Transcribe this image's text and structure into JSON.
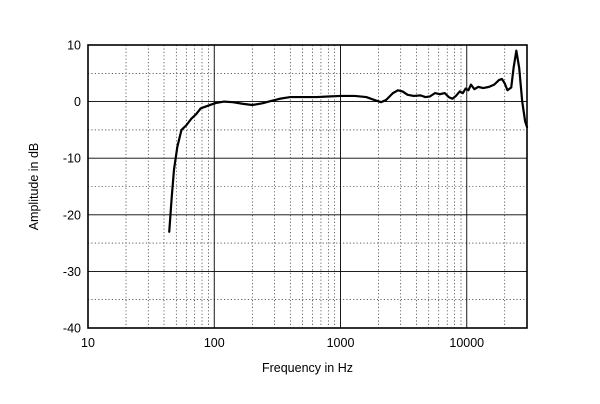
{
  "chart_data": {
    "type": "line",
    "title": "",
    "xlabel": "Frequency in Hz",
    "ylabel": "Amplitude in dB",
    "xscale": "log",
    "xlim": [
      10,
      30000
    ],
    "ylim": [
      -40,
      10
    ],
    "grid": true,
    "legend": "none",
    "x_tick_labels": [
      {
        "value": 10,
        "label": "10"
      },
      {
        "value": 100,
        "label": "100"
      },
      {
        "value": 1000,
        "label": "1000"
      },
      {
        "value": 10000,
        "label": "10000"
      }
    ],
    "y_tick_labels": [
      {
        "value": 10,
        "label": "10"
      },
      {
        "value": 0,
        "label": "0"
      },
      {
        "value": -10,
        "label": "-10"
      },
      {
        "value": -20,
        "label": "-20"
      },
      {
        "value": -30,
        "label": "-30"
      },
      {
        "value": -40,
        "label": "-40"
      }
    ],
    "series": [
      {
        "color": "#000000",
        "points": [
          [
            44,
            -23
          ],
          [
            46,
            -17
          ],
          [
            48,
            -12
          ],
          [
            51,
            -8
          ],
          [
            55,
            -5
          ],
          [
            60,
            -4.2
          ],
          [
            66,
            -3
          ],
          [
            72,
            -2.2
          ],
          [
            78,
            -1.2
          ],
          [
            85,
            -0.9
          ],
          [
            95,
            -0.5
          ],
          [
            105,
            -0.2
          ],
          [
            120,
            0
          ],
          [
            140,
            -0.1
          ],
          [
            170,
            -0.4
          ],
          [
            200,
            -0.6
          ],
          [
            240,
            -0.3
          ],
          [
            280,
            0.1
          ],
          [
            330,
            0.5
          ],
          [
            400,
            0.8
          ],
          [
            500,
            0.8
          ],
          [
            650,
            0.8
          ],
          [
            800,
            0.9
          ],
          [
            1000,
            1.0
          ],
          [
            1300,
            1.0
          ],
          [
            1600,
            0.8
          ],
          [
            1900,
            0.2
          ],
          [
            2100,
            -0.1
          ],
          [
            2300,
            0.3
          ],
          [
            2600,
            1.5
          ],
          [
            2850,
            2.0
          ],
          [
            3100,
            1.8
          ],
          [
            3400,
            1.2
          ],
          [
            3800,
            1.0
          ],
          [
            4300,
            1.1
          ],
          [
            4700,
            0.8
          ],
          [
            5100,
            0.9
          ],
          [
            5600,
            1.5
          ],
          [
            6100,
            1.3
          ],
          [
            6700,
            1.5
          ],
          [
            7200,
            0.8
          ],
          [
            7700,
            0.5
          ],
          [
            8200,
            1.0
          ],
          [
            8800,
            1.8
          ],
          [
            9300,
            1.5
          ],
          [
            9800,
            2.3
          ],
          [
            10300,
            2.0
          ],
          [
            10800,
            3.0
          ],
          [
            11500,
            2.2
          ],
          [
            12300,
            2.6
          ],
          [
            13500,
            2.4
          ],
          [
            15000,
            2.6
          ],
          [
            16500,
            3.0
          ],
          [
            18000,
            3.8
          ],
          [
            19000,
            4.0
          ],
          [
            20000,
            3.2
          ],
          [
            21000,
            2.0
          ],
          [
            22500,
            2.5
          ],
          [
            23500,
            6.0
          ],
          [
            24700,
            9.0
          ],
          [
            26000,
            6.0
          ],
          [
            27500,
            0.0
          ],
          [
            29000,
            -3.5
          ],
          [
            30000,
            -4.5
          ]
        ]
      }
    ]
  }
}
